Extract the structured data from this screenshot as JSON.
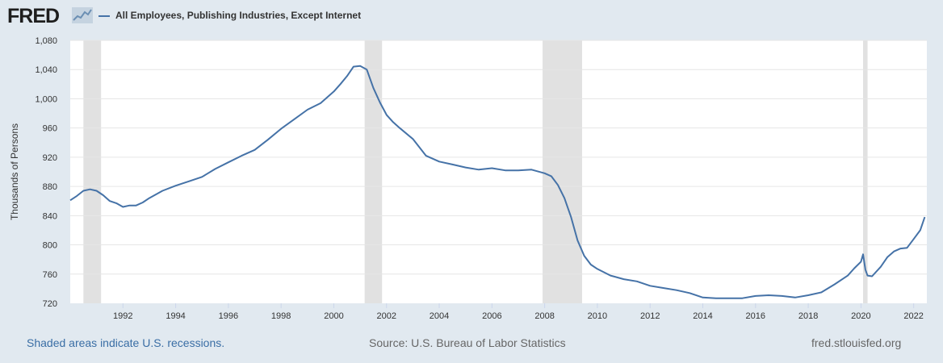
{
  "header": {
    "logo_text": "FRED",
    "series_title": "All Employees, Publishing Industries, Except Internet"
  },
  "colors": {
    "line": "#4572a7",
    "recession": "#e1e1e1",
    "background": "#e1e9f0",
    "plot": "#ffffff"
  },
  "footer": {
    "recession_note": "Shaded areas indicate U.S. recessions.",
    "source": "Source: U.S. Bureau of Labor Statistics",
    "site": "fred.stlouisfed.org"
  },
  "chart_data": {
    "type": "line",
    "title": "All Employees, Publishing Industries, Except Internet",
    "xlabel": "",
    "ylabel": "Thousands of Persons",
    "xlim": [
      1990.0,
      2022.5
    ],
    "ylim": [
      720,
      1080
    ],
    "yticks": [
      720,
      760,
      800,
      840,
      880,
      920,
      960,
      1000,
      1040,
      1080
    ],
    "ytick_labels": [
      "720",
      "760",
      "800",
      "840",
      "880",
      "920",
      "960",
      "1,000",
      "1,040",
      "1,080"
    ],
    "xticks": [
      1992,
      1994,
      1996,
      1998,
      2000,
      2002,
      2004,
      2006,
      2008,
      2010,
      2012,
      2014,
      2016,
      2018,
      2020,
      2022
    ],
    "xtick_labels": [
      "1992",
      "1994",
      "1996",
      "1998",
      "2000",
      "2002",
      "2004",
      "2006",
      "2008",
      "2010",
      "2012",
      "2014",
      "2016",
      "2018",
      "2020",
      "2022"
    ],
    "grid": "horizontal",
    "recessions": [
      [
        1990.5,
        1991.17
      ],
      [
        2001.17,
        2001.83
      ],
      [
        2007.92,
        2009.42
      ],
      [
        2020.08,
        2020.25
      ]
    ],
    "series": [
      {
        "x": [
          1990.0,
          1990.25,
          1990.5,
          1990.75,
          1991.0,
          1991.25,
          1991.5,
          1991.75,
          1992.0,
          1992.25,
          1992.5,
          1992.75,
          1993.0,
          1993.5,
          1994.0,
          1994.5,
          1995.0,
          1995.5,
          1996.0,
          1996.5,
          1997.0,
          1997.5,
          1998.0,
          1998.5,
          1999.0,
          1999.5,
          2000.0,
          2000.25,
          2000.5,
          2000.75,
          2001.0,
          2001.25,
          2001.5,
          2001.75,
          2002.0,
          2002.25,
          2002.5,
          2003.0,
          2003.5,
          2004.0,
          2004.5,
          2005.0,
          2005.5,
          2006.0,
          2006.5,
          2007.0,
          2007.5,
          2008.0,
          2008.25,
          2008.5,
          2008.75,
          2009.0,
          2009.25,
          2009.5,
          2009.75,
          2010.0,
          2010.5,
          2011.0,
          2011.5,
          2012.0,
          2012.5,
          2013.0,
          2013.5,
          2014.0,
          2014.5,
          2015.0,
          2015.5,
          2016.0,
          2016.5,
          2017.0,
          2017.5,
          2018.0,
          2018.5,
          2019.0,
          2019.5,
          2019.75,
          2020.0,
          2020.08,
          2020.17,
          2020.25,
          2020.42,
          2020.75,
          2021.0,
          2021.25,
          2021.5,
          2021.75,
          2022.0,
          2022.25,
          2022.42
        ],
        "values": [
          861,
          867,
          874,
          876,
          874,
          868,
          860,
          857,
          852,
          854,
          854,
          858,
          864,
          874,
          881,
          887,
          893,
          904,
          913,
          922,
          930,
          944,
          959,
          972,
          985,
          994,
          1010,
          1020,
          1031,
          1044,
          1045,
          1040,
          1015,
          995,
          978,
          968,
          960,
          945,
          922,
          914,
          910,
          906,
          903,
          905,
          902,
          902,
          903,
          898,
          894,
          882,
          864,
          838,
          806,
          785,
          773,
          767,
          758,
          753,
          750,
          744,
          741,
          738,
          734,
          728,
          727,
          727,
          727,
          730,
          731,
          730,
          728,
          731,
          735,
          746,
          758,
          768,
          777,
          787,
          766,
          758,
          757,
          770,
          783,
          791,
          795,
          796,
          808,
          820,
          838
        ]
      }
    ]
  }
}
